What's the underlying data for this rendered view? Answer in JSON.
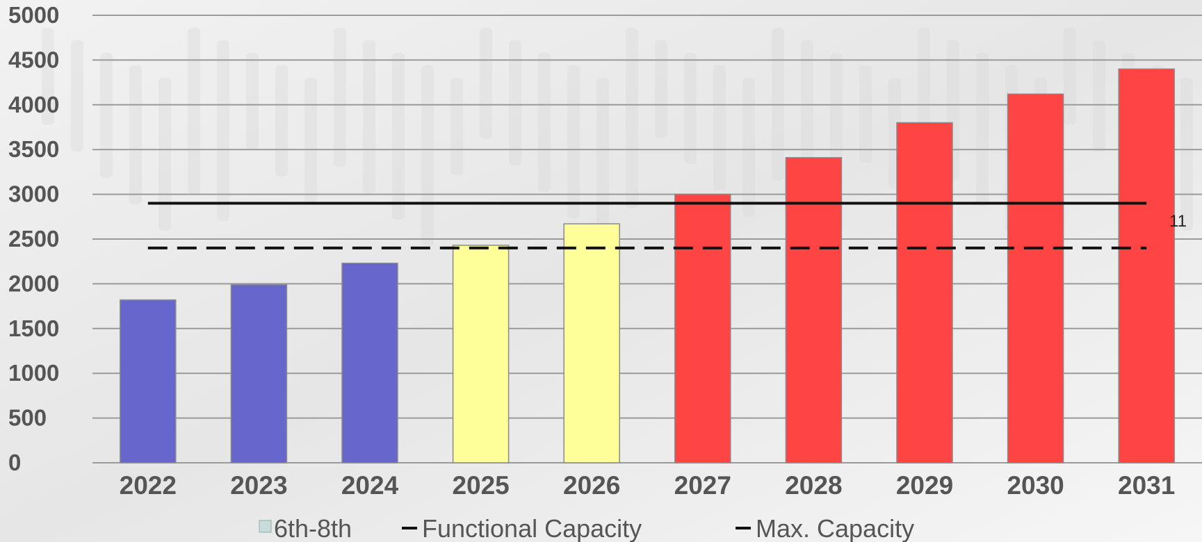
{
  "chart_data": {
    "type": "bar",
    "categories": [
      "2022",
      "2023",
      "2024",
      "2025",
      "2026",
      "2027",
      "2028",
      "2029",
      "2030",
      "2031"
    ],
    "series": [
      {
        "name": "6th-8th",
        "values": [
          1820,
          1990,
          2230,
          2430,
          2670,
          3000,
          3410,
          3800,
          4120,
          4400
        ],
        "colors": [
          "#6666cc",
          "#6666cc",
          "#6666cc",
          "#ffff99",
          "#ffff99",
          "#ff4444",
          "#ff4444",
          "#ff4444",
          "#ff4444",
          "#ff4444"
        ]
      }
    ],
    "reference_lines": [
      {
        "name": "Functional Capacity",
        "value": 2400,
        "style": "dashed",
        "color": "#111111"
      },
      {
        "name": "Max. Capacity",
        "value": 2900,
        "style": "solid",
        "color": "#111111"
      }
    ],
    "ylim": [
      0,
      5000
    ],
    "yticks": [
      "0",
      "500",
      "1000",
      "1500",
      "2000",
      "2500",
      "3000",
      "3500",
      "4000",
      "4500",
      "5000"
    ],
    "grid": true,
    "legend_position": "bottom",
    "legend_swatch_color": "#c8dcdc",
    "annotation": "11"
  }
}
